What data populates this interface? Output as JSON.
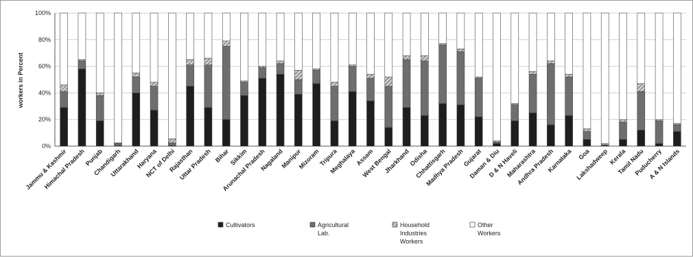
{
  "chart_data": {
    "type": "bar",
    "stacked": true,
    "title": "",
    "ylabel": "workers in Percent",
    "xlabel": "",
    "ylim": [
      0,
      100
    ],
    "yticks": [
      "0%",
      "20%",
      "40%",
      "60%",
      "80%",
      "100%"
    ],
    "grid": true,
    "legend_position": "bottom",
    "categories": [
      "Jammu & Kashmir",
      "Himachal Pradesh",
      "Punjab",
      "Chandigarh",
      "Uttarakhand",
      "Haryana",
      "NCT of Delhi",
      "Rajasthan",
      "Uttar Pradesh",
      "Bihar",
      "Sikkim",
      "Arunachal Pradesh",
      "Nagaland",
      "Manipur",
      "Mizoram",
      "Tripura",
      "Meghalaya",
      "Assam",
      "West Bengal",
      "Jharkhand",
      "Odisha",
      "Chhattisgarh",
      "Madhya Pradesh",
      "Gujarat",
      "Daman & Diu",
      "D & N Haveli",
      "Maharashtra",
      "Andhra Pradesh",
      "Karnataka",
      "Goa",
      "Lakshadweep",
      "Kerala",
      "Tamil Nadu",
      "Puducherry",
      "A & N Islands"
    ],
    "series": [
      {
        "name": "Cultivators",
        "color": "#1e1e1e",
        "values": [
          29,
          58,
          19,
          0.5,
          40,
          27,
          0.5,
          45,
          29,
          20,
          38,
          51,
          54,
          39,
          47,
          19,
          41,
          34,
          14,
          29,
          23,
          32,
          31,
          22,
          2,
          19,
          25,
          16,
          23,
          5,
          0.5,
          5,
          12,
          2,
          11
        ]
      },
      {
        "name": "Agricultural Lab.",
        "color": "#6e6e6e",
        "values": [
          12,
          6,
          19,
          1.5,
          12,
          18,
          2,
          16,
          32,
          55,
          10,
          8,
          8,
          11,
          10,
          26,
          19,
          17,
          31,
          36,
          41,
          44,
          40,
          29,
          1,
          12,
          29,
          46,
          29,
          6,
          0.5,
          13,
          29,
          17,
          5
        ]
      },
      {
        "name": "Household Industries Workers",
        "color": "#b4b4b4",
        "values": [
          5,
          1,
          2,
          0.5,
          3,
          3,
          3,
          4,
          5,
          4,
          1,
          1,
          2,
          7,
          1,
          3,
          1,
          3,
          7,
          3,
          4,
          1,
          2,
          1,
          1,
          1,
          2,
          2,
          2,
          2,
          1,
          2,
          6,
          1,
          1
        ]
      },
      {
        "name": "Other Workers",
        "color": "#ffffff",
        "values": [
          54,
          35,
          60,
          97.5,
          45,
          52,
          94.5,
          35,
          34,
          21,
          51,
          40,
          36,
          43,
          42,
          52,
          39,
          46,
          48,
          32,
          32,
          23,
          27,
          48,
          96,
          68,
          44,
          36,
          46,
          87,
          98,
          80,
          53,
          80,
          83
        ]
      }
    ]
  },
  "legend": [
    {
      "lines": [
        "Cultivators"
      ]
    },
    {
      "lines": [
        "Agricultural",
        "Lab."
      ]
    },
    {
      "lines": [
        "Household",
        "Industries",
        "Workers"
      ]
    },
    {
      "lines": [
        "Other",
        "Workers"
      ]
    }
  ]
}
